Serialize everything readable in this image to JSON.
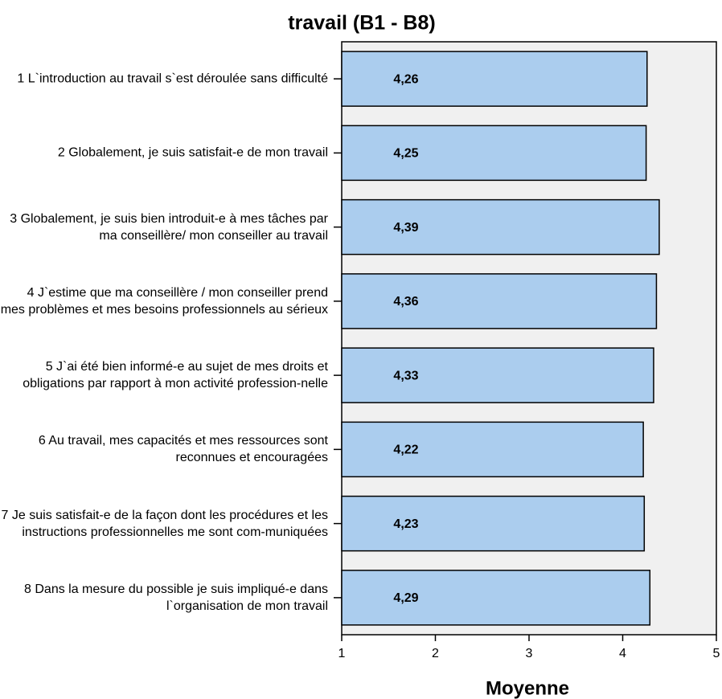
{
  "chart_data": {
    "type": "barh",
    "title": "travail (B1 - B8)",
    "xlabel": "Moyenne",
    "categories": [
      "1 L`introduction au travail s`est déroulée sans difficulté",
      "2 Globalement, je suis satisfait-e de mon travail",
      "3 Globalement, je suis bien introduit-e à mes tâches par ma conseillère/ mon conseiller au travail",
      "4 J`estime que ma conseillère / mon conseiller prend mes problèmes et mes besoins professionnels au sérieux",
      "5 J`ai été bien informé-e au sujet de mes droits et obligations par rapport à mon activité profession-nelle",
      "6 Au travail, mes capacités et mes ressources sont reconnues et encouragées",
      "7 Je suis satisfait-e de la façon dont les procédures et les instructions professionnelles me sont com-muniquées",
      "8 Dans la mesure du possible je suis impliqué-e dans l`organisation de mon travail"
    ],
    "values": [
      4.26,
      4.25,
      4.39,
      4.36,
      4.33,
      4.22,
      4.23,
      4.29
    ],
    "value_labels": [
      "4,26",
      "4,25",
      "4,39",
      "4,36",
      "4,33",
      "4,22",
      "4,23",
      "4,29"
    ],
    "color": "#abcdee",
    "background": "#f0f0f0",
    "xlim": [
      1,
      5
    ],
    "xticks": [
      1,
      2,
      3,
      4,
      5
    ]
  }
}
